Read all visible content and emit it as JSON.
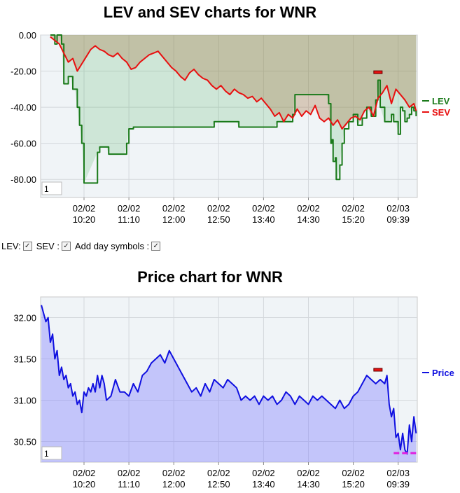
{
  "lev_sev_chart": {
    "title": "LEV and SEV charts for WNR",
    "pager_value": "1",
    "legend": [
      {
        "name": "LEV",
        "color": "#1a7a1a"
      },
      {
        "name": "SEV",
        "color": "#e81010"
      }
    ],
    "y_ticks": [
      "0.00",
      "-20.00",
      "-40.00",
      "-60.00",
      "-80.00"
    ],
    "ylim": [
      -90,
      0
    ],
    "x_ticks": [
      {
        "date": "02/02",
        "time": "10:20"
      },
      {
        "date": "02/02",
        "time": "11:10"
      },
      {
        "date": "02/02",
        "time": "12:00"
      },
      {
        "date": "02/02",
        "time": "12:50"
      },
      {
        "date": "02/02",
        "time": "13:40"
      },
      {
        "date": "02/02",
        "time": "14:30"
      },
      {
        "date": "02/02",
        "time": "15:20"
      },
      {
        "date": "02/03",
        "time": "09:39"
      }
    ]
  },
  "controls": {
    "lev_label": "LEV:",
    "sev_label": "SEV :",
    "day_symbols_label": "Add day symbols :",
    "check_glyph": "✓"
  },
  "price_chart": {
    "title": "Price chart for WNR",
    "pager_value": "1",
    "legend": [
      {
        "name": "Price",
        "color": "#1010e0"
      }
    ],
    "y_ticks": [
      "32.00",
      "31.50",
      "31.00",
      "30.50"
    ],
    "ylim": [
      30.25,
      32.25
    ],
    "x_ticks": [
      {
        "date": "02/02",
        "time": "10:20"
      },
      {
        "date": "02/02",
        "time": "11:10"
      },
      {
        "date": "02/02",
        "time": "12:00"
      },
      {
        "date": "02/02",
        "time": "12:50"
      },
      {
        "date": "02/02",
        "time": "13:40"
      },
      {
        "date": "02/02",
        "time": "14:30"
      },
      {
        "date": "02/02",
        "time": "15:20"
      },
      {
        "date": "02/03",
        "time": "09:39"
      }
    ]
  },
  "chart_data": [
    {
      "type": "line",
      "title": "LEV and SEV charts for WNR",
      "xlabel": "",
      "ylabel": "",
      "ylim": [
        -90,
        0
      ],
      "x_tick_labels": [
        "02/02 10:20",
        "02/02 11:10",
        "02/02 12:00",
        "02/02 12:50",
        "02/02 13:40",
        "02/02 14:30",
        "02/02 15:20",
        "02/03 09:39"
      ],
      "x_range_ticks": [
        -0.75,
        7.4
      ],
      "grid": true,
      "legend_position": "right",
      "series": [
        {
          "name": "LEV",
          "color": "#1a7a1a",
          "x": [
            -0.75,
            -0.7,
            -0.65,
            -0.6,
            -0.55,
            -0.5,
            -0.45,
            -0.4,
            -0.35,
            -0.3,
            -0.25,
            -0.2,
            -0.15,
            -0.1,
            -0.05,
            0.0,
            0.3,
            0.35,
            0.5,
            0.55,
            0.9,
            0.95,
            1.0,
            1.1,
            1.15,
            1.2,
            1.5,
            2.0,
            2.5,
            2.85,
            2.9,
            3.4,
            3.45,
            3.6,
            3.7,
            4.25,
            4.3,
            4.6,
            4.65,
            4.7,
            5.0,
            5.4,
            5.45,
            5.5,
            5.52,
            5.55,
            5.6,
            5.62,
            5.65,
            5.7,
            5.75,
            5.8,
            5.9,
            6.0,
            6.1,
            6.2,
            6.3,
            6.4,
            6.5,
            6.55,
            6.6,
            6.7,
            6.8,
            6.85,
            6.9,
            6.95,
            7.0,
            7.05,
            7.1,
            7.15,
            7.2,
            7.25,
            7.3,
            7.35,
            7.4
          ],
          "y": [
            0,
            0,
            -5,
            0,
            0,
            -5,
            -27,
            -27,
            -23,
            -23,
            -30,
            -30,
            -40,
            -50,
            -60,
            -82,
            -65,
            -62,
            -62,
            -66,
            -66,
            -60,
            -52,
            -51,
            -51,
            -51,
            -51,
            -51,
            -51,
            -51,
            -48,
            -48,
            -51,
            -51,
            -51,
            -51,
            -48,
            -48,
            -44,
            -33,
            -33,
            -33,
            -38,
            -60,
            -58,
            -70,
            -68,
            -80,
            -80,
            -72,
            -60,
            -52,
            -48,
            -44,
            -50,
            -46,
            -40,
            -45,
            -36,
            -25,
            -40,
            -48,
            -48,
            -44,
            -48,
            -48,
            -55,
            -40,
            -42,
            -48,
            -46,
            -44,
            -40,
            -42,
            -45
          ]
        },
        {
          "name": "SEV",
          "color": "#e81010",
          "x": [
            -0.75,
            -0.65,
            -0.55,
            -0.45,
            -0.35,
            -0.25,
            -0.15,
            -0.05,
            0.05,
            0.15,
            0.25,
            0.35,
            0.45,
            0.55,
            0.65,
            0.75,
            0.85,
            0.95,
            1.05,
            1.15,
            1.25,
            1.35,
            1.45,
            1.55,
            1.65,
            1.75,
            1.85,
            1.95,
            2.05,
            2.15,
            2.25,
            2.35,
            2.45,
            2.55,
            2.65,
            2.75,
            2.85,
            2.95,
            3.05,
            3.15,
            3.25,
            3.35,
            3.45,
            3.55,
            3.65,
            3.75,
            3.85,
            3.95,
            4.05,
            4.15,
            4.25,
            4.35,
            4.45,
            4.55,
            4.65,
            4.75,
            4.85,
            4.95,
            5.05,
            5.15,
            5.25,
            5.35,
            5.45,
            5.55,
            5.65,
            5.75,
            5.85,
            5.95,
            6.05,
            6.15,
            6.25,
            6.35,
            6.45,
            6.55,
            6.65,
            6.75,
            6.85,
            6.95,
            7.05,
            7.15,
            7.25,
            7.35,
            7.4
          ],
          "y": [
            -1,
            -3,
            -5,
            -10,
            -15,
            -13,
            -20,
            -16,
            -12,
            -8,
            -6,
            -8,
            -9,
            -11,
            -12,
            -10,
            -13,
            -15,
            -19,
            -18,
            -15,
            -13,
            -11,
            -10,
            -9,
            -12,
            -15,
            -18,
            -20,
            -23,
            -25,
            -21,
            -19,
            -22,
            -24,
            -25,
            -28,
            -30,
            -28,
            -31,
            -33,
            -30,
            -32,
            -33,
            -35,
            -34,
            -37,
            -35,
            -38,
            -41,
            -45,
            -43,
            -48,
            -44,
            -46,
            -41,
            -45,
            -42,
            -44,
            -39,
            -46,
            -48,
            -46,
            -50,
            -47,
            -52,
            -49,
            -46,
            -45,
            -47,
            -42,
            -40,
            -45,
            -35,
            -32,
            -28,
            -38,
            -30,
            -33,
            -36,
            -40,
            -38,
            -42
          ]
        }
      ]
    },
    {
      "type": "area",
      "title": "Price chart for WNR",
      "xlabel": "",
      "ylabel": "",
      "ylim": [
        30.25,
        32.25
      ],
      "x_tick_labels": [
        "02/02 10:20",
        "02/02 11:10",
        "02/02 12:00",
        "02/02 12:50",
        "02/02 13:40",
        "02/02 14:30",
        "02/02 15:20",
        "02/03 09:39"
      ],
      "x_range_ticks": [
        -0.95,
        7.4
      ],
      "grid": true,
      "legend_position": "right",
      "series": [
        {
          "name": "Price",
          "color": "#1010e0",
          "x": [
            -0.95,
            -0.9,
            -0.85,
            -0.8,
            -0.75,
            -0.7,
            -0.65,
            -0.6,
            -0.55,
            -0.5,
            -0.45,
            -0.4,
            -0.35,
            -0.3,
            -0.25,
            -0.2,
            -0.15,
            -0.1,
            -0.05,
            0.0,
            0.05,
            0.1,
            0.15,
            0.2,
            0.25,
            0.3,
            0.35,
            0.4,
            0.45,
            0.5,
            0.6,
            0.7,
            0.8,
            0.9,
            1.0,
            1.1,
            1.2,
            1.3,
            1.4,
            1.5,
            1.6,
            1.7,
            1.8,
            1.9,
            2.0,
            2.1,
            2.2,
            2.3,
            2.4,
            2.5,
            2.6,
            2.7,
            2.8,
            2.9,
            3.0,
            3.1,
            3.2,
            3.3,
            3.4,
            3.5,
            3.6,
            3.7,
            3.8,
            3.9,
            4.0,
            4.1,
            4.2,
            4.3,
            4.4,
            4.5,
            4.6,
            4.7,
            4.8,
            4.9,
            5.0,
            5.1,
            5.2,
            5.3,
            5.4,
            5.5,
            5.6,
            5.7,
            5.8,
            5.9,
            6.0,
            6.1,
            6.2,
            6.3,
            6.4,
            6.5,
            6.6,
            6.7,
            6.75,
            6.8,
            6.85,
            6.9,
            6.95,
            7.0,
            7.05,
            7.1,
            7.15,
            7.2,
            7.25,
            7.3,
            7.35,
            7.4
          ],
          "y": [
            32.15,
            32.05,
            31.95,
            32.0,
            31.7,
            31.8,
            31.5,
            31.6,
            31.3,
            31.4,
            31.25,
            31.3,
            31.15,
            31.2,
            31.05,
            31.1,
            30.95,
            31.0,
            30.85,
            31.1,
            31.05,
            31.15,
            31.1,
            31.2,
            31.1,
            31.3,
            31.15,
            31.3,
            31.2,
            31.0,
            31.05,
            31.25,
            31.1,
            31.1,
            31.05,
            31.2,
            31.1,
            31.3,
            31.35,
            31.45,
            31.5,
            31.55,
            31.45,
            31.6,
            31.5,
            31.4,
            31.3,
            31.2,
            31.1,
            31.15,
            31.05,
            31.2,
            31.1,
            31.25,
            31.2,
            31.15,
            31.25,
            31.2,
            31.15,
            31.0,
            31.05,
            31.0,
            31.05,
            30.95,
            31.05,
            31.0,
            31.05,
            30.95,
            31.0,
            31.1,
            31.05,
            30.95,
            31.05,
            31.0,
            30.95,
            31.05,
            31.0,
            31.05,
            31.0,
            30.95,
            30.9,
            31.0,
            30.9,
            30.95,
            31.05,
            31.1,
            31.2,
            31.3,
            31.25,
            31.2,
            31.25,
            31.2,
            31.3,
            30.95,
            30.8,
            30.9,
            30.55,
            30.6,
            30.4,
            30.6,
            30.4,
            30.35,
            30.7,
            30.5,
            30.8,
            30.6
          ]
        }
      ]
    }
  ]
}
